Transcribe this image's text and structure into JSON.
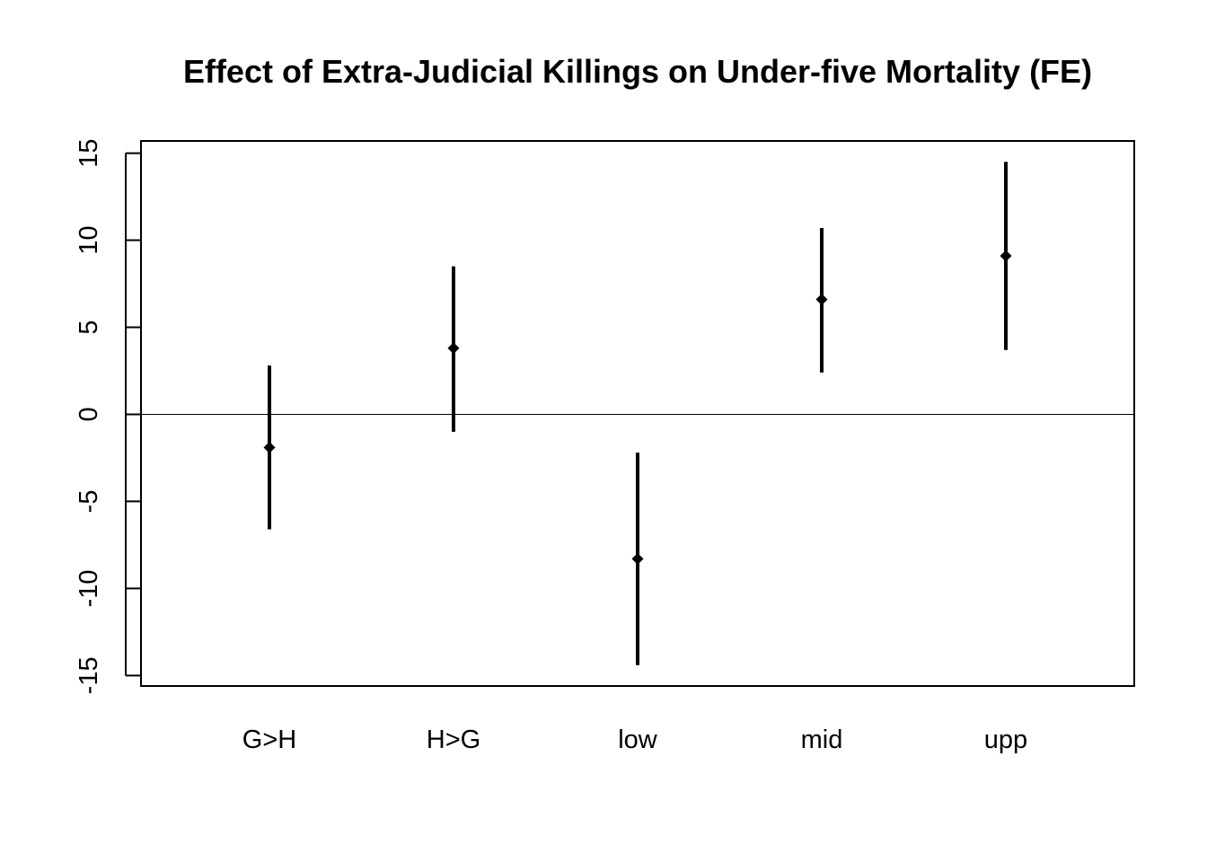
{
  "chart_data": {
    "type": "errorbar",
    "title": "Effect of Extra-Judicial Killings on Under-five Mortality (FE)",
    "xlabel": "",
    "ylabel": "",
    "categories": [
      "G>H",
      "H>G",
      "low",
      "mid",
      "upp"
    ],
    "estimates": [
      -1.9,
      3.8,
      -8.3,
      6.6,
      9.1
    ],
    "lower": [
      -6.6,
      -1.0,
      -14.4,
      2.4,
      3.7
    ],
    "upper": [
      2.8,
      8.5,
      -2.2,
      10.7,
      14.5
    ],
    "ylim": [
      -15.6,
      15.7
    ],
    "yticks": [
      -15,
      -10,
      -5,
      0,
      5,
      10,
      15
    ],
    "ytick_labels": [
      "-15",
      "-10",
      "-5",
      "0",
      "5",
      "10",
      "15"
    ],
    "reference_line": 0,
    "grid": false,
    "legend": "none",
    "colors": {
      "marks": "#000000",
      "background": "#ffffff"
    }
  }
}
